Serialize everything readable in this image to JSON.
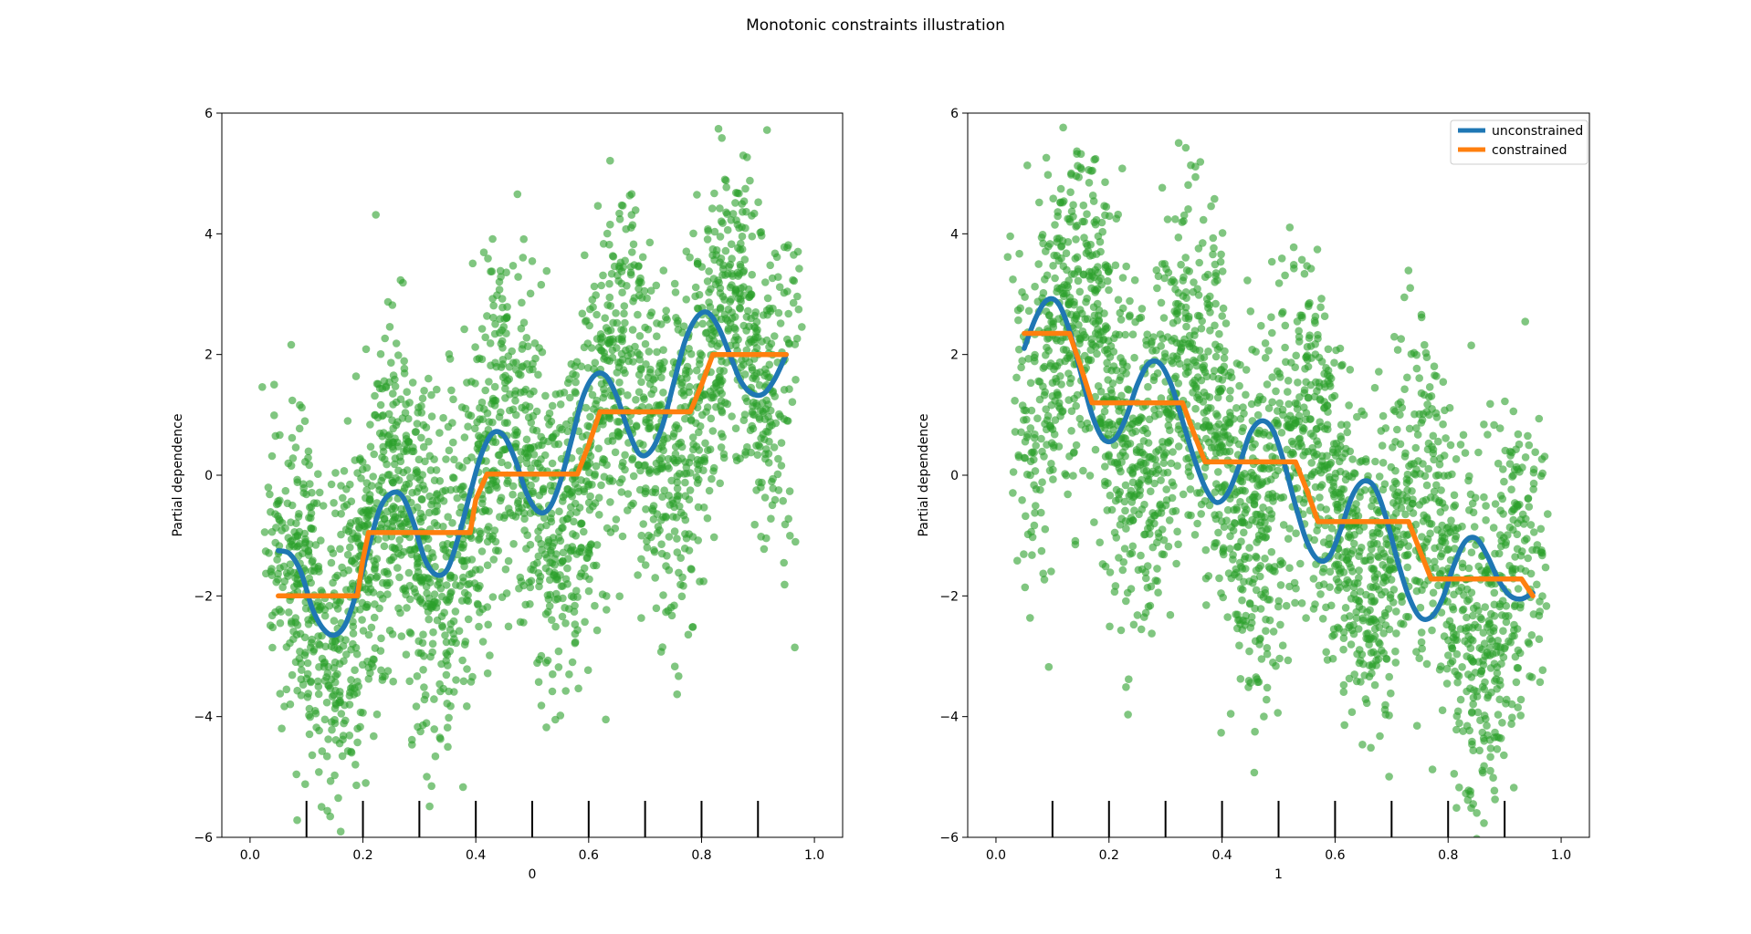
{
  "figure": {
    "suptitle": "Monotonic constraints illustration"
  },
  "colors": {
    "scatter": "#2ca02c",
    "unconstrained": "#1f77b4",
    "constrained": "#ff7f0e",
    "axes": "#000000"
  },
  "chart_data": [
    {
      "type": "line",
      "title": "",
      "xlabel": "0",
      "ylabel": "Partial dependence",
      "xlim": [
        -0.05,
        1.05
      ],
      "ylim": [
        -6,
        6
      ],
      "xticks": [
        "0.0",
        "0.2",
        "0.4",
        "0.6",
        "0.8",
        "1.0"
      ],
      "yticks": [
        "−6",
        "−4",
        "−2",
        "0",
        "2",
        "4",
        "6"
      ],
      "grid": false,
      "legend": null,
      "scatter_description": "Green scatter of ~5000 noisy samples following y ≈ 5x + sin(10πx) − noise",
      "rug_deciles": [
        0.1,
        0.2,
        0.3,
        0.4,
        0.5,
        0.6,
        0.7,
        0.8,
        0.9
      ],
      "series": [
        {
          "name": "unconstrained",
          "x": [
            0.05,
            0.07,
            0.09,
            0.11,
            0.13,
            0.15,
            0.17,
            0.19,
            0.21,
            0.23,
            0.25,
            0.27,
            0.29,
            0.31,
            0.33,
            0.35,
            0.37,
            0.39,
            0.41,
            0.43,
            0.45,
            0.47,
            0.49,
            0.51,
            0.53,
            0.55,
            0.57,
            0.59,
            0.61,
            0.63,
            0.65,
            0.67,
            0.69,
            0.71,
            0.73,
            0.75,
            0.77,
            0.79,
            0.81,
            0.83,
            0.85,
            0.87,
            0.89,
            0.91,
            0.93,
            0.95
          ],
          "y": [
            -1.25,
            -1.3,
            -1.6,
            -2.2,
            -2.55,
            -2.65,
            -2.45,
            -1.9,
            -1.2,
            -0.55,
            -0.3,
            -0.35,
            -0.8,
            -1.4,
            -1.65,
            -1.55,
            -1.0,
            -0.3,
            0.35,
            0.7,
            0.65,
            0.25,
            -0.3,
            -0.6,
            -0.55,
            -0.1,
            0.6,
            1.3,
            1.65,
            1.65,
            1.3,
            0.75,
            0.35,
            0.4,
            0.8,
            1.5,
            2.2,
            2.6,
            2.7,
            2.45,
            2.0,
            1.55,
            1.35,
            1.35,
            1.6,
            2.0
          ]
        },
        {
          "name": "constrained",
          "x": [
            0.05,
            0.19,
            0.2,
            0.21,
            0.39,
            0.4,
            0.42,
            0.58,
            0.6,
            0.62,
            0.78,
            0.8,
            0.82,
            0.95
          ],
          "y": [
            -2.0,
            -2.0,
            -1.4,
            -0.95,
            -0.95,
            -0.4,
            0.02,
            0.02,
            0.5,
            1.05,
            1.05,
            1.5,
            2.0,
            2.0
          ]
        }
      ]
    },
    {
      "type": "line",
      "title": "",
      "xlabel": "1",
      "ylabel": "Partial dependence",
      "xlim": [
        -0.05,
        1.05
      ],
      "ylim": [
        -6,
        6
      ],
      "xticks": [
        "0.0",
        "0.2",
        "0.4",
        "0.6",
        "0.8",
        "1.0"
      ],
      "yticks": [
        "−6",
        "−4",
        "−2",
        "0",
        "2",
        "4",
        "6"
      ],
      "grid": false,
      "legend": "top-right",
      "scatter_description": "Green scatter of ~5000 noisy samples following y ≈ −5x + sin(10πx) + noise",
      "rug_deciles": [
        0.1,
        0.2,
        0.3,
        0.4,
        0.5,
        0.6,
        0.7,
        0.8,
        0.9
      ],
      "series": [
        {
          "name": "unconstrained",
          "x": [
            0.05,
            0.07,
            0.09,
            0.11,
            0.13,
            0.15,
            0.17,
            0.19,
            0.21,
            0.23,
            0.25,
            0.27,
            0.29,
            0.31,
            0.33,
            0.35,
            0.37,
            0.39,
            0.41,
            0.43,
            0.45,
            0.47,
            0.49,
            0.51,
            0.53,
            0.55,
            0.57,
            0.59,
            0.61,
            0.63,
            0.65,
            0.67,
            0.69,
            0.71,
            0.73,
            0.75,
            0.77,
            0.79,
            0.81,
            0.83,
            0.85,
            0.87,
            0.89,
            0.91,
            0.93,
            0.95
          ],
          "y": [
            2.1,
            2.6,
            2.9,
            2.85,
            2.4,
            1.7,
            1.0,
            0.6,
            0.6,
            0.95,
            1.5,
            1.85,
            1.85,
            1.5,
            0.9,
            0.3,
            -0.2,
            -0.45,
            -0.3,
            0.15,
            0.7,
            0.9,
            0.75,
            0.2,
            -0.5,
            -1.1,
            -1.4,
            -1.35,
            -0.9,
            -0.35,
            -0.1,
            -0.2,
            -0.7,
            -1.4,
            -2.0,
            -2.35,
            -2.35,
            -2.05,
            -1.5,
            -1.1,
            -1.05,
            -1.35,
            -1.75,
            -2.0,
            -2.05,
            -1.95
          ]
        },
        {
          "name": "constrained",
          "x": [
            0.05,
            0.13,
            0.15,
            0.17,
            0.33,
            0.35,
            0.37,
            0.53,
            0.55,
            0.57,
            0.73,
            0.75,
            0.77,
            0.93,
            0.95
          ],
          "y": [
            2.35,
            2.35,
            1.8,
            1.2,
            1.2,
            0.7,
            0.22,
            0.22,
            -0.25,
            -0.77,
            -0.77,
            -1.25,
            -1.72,
            -1.72,
            -2.0
          ]
        }
      ]
    }
  ],
  "legend": {
    "items": [
      "unconstrained",
      "constrained"
    ]
  }
}
